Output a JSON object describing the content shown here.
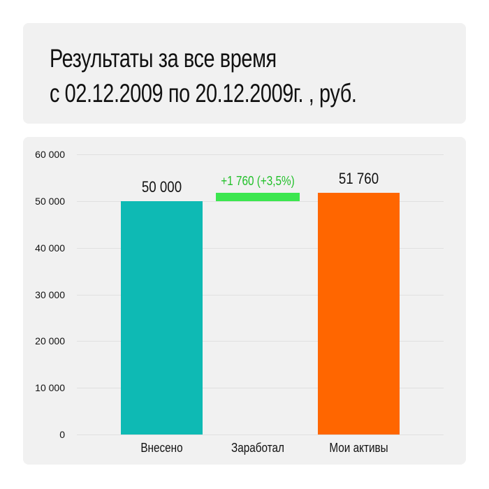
{
  "title": {
    "line1": "Результаты за все время",
    "line2": "с 02.12.2009 по 20.12.2009г. , руб."
  },
  "chart_data": {
    "type": "bar",
    "title": "Результаты за все время с 02.12.2009 по 20.12.2009г. , руб.",
    "categories": [
      "Внесено",
      "Заработал",
      "Мои активы"
    ],
    "values": [
      50000,
      1760,
      51760
    ],
    "bar_labels": [
      "50 000",
      "+1 760 (+3,5%)",
      "51 760"
    ],
    "bar_styles": [
      "full",
      "floating-from-50000",
      "full"
    ],
    "colors": [
      "#0ebab4",
      "#3ce64f",
      "#ff6600"
    ],
    "label_colors": [
      "#111111",
      "#22c02a",
      "#111111"
    ],
    "xlabel": "",
    "ylabel": "",
    "ylim": [
      0,
      60000
    ],
    "yticks": [
      "0",
      "10 000",
      "20 000",
      "30 000",
      "40 000",
      "50 000",
      "60 000"
    ],
    "grid": true,
    "legend": null
  }
}
